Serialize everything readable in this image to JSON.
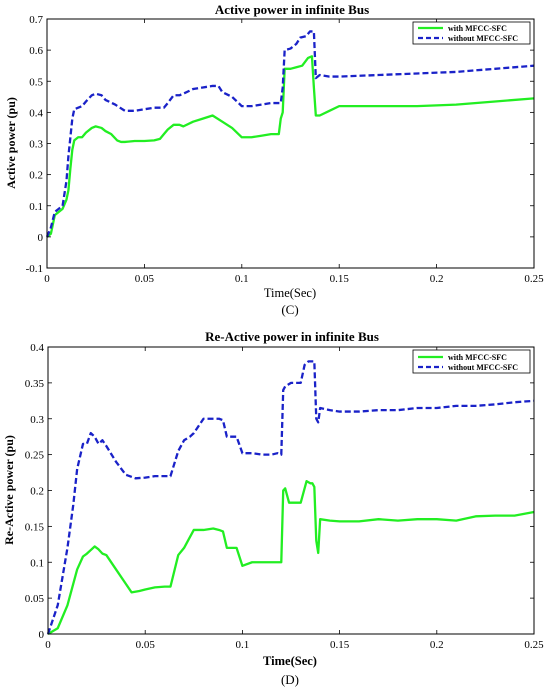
{
  "chart_data": [
    {
      "type": "line",
      "title": "Active power in infinite Bus",
      "xlabel": "Time(Sec)",
      "ylabel": "Active power (pu)",
      "caption": "(C)",
      "xlim": [
        0,
        0.25
      ],
      "ylim": [
        -0.1,
        0.7
      ],
      "xticks": [
        0,
        0.05,
        0.1,
        0.15,
        0.2,
        0.25
      ],
      "xtick_labels": [
        "0",
        "0.05",
        "0.1",
        "0.15",
        "0.2",
        "0.25"
      ],
      "yticks": [
        -0.1,
        0,
        0.1,
        0.2,
        0.3,
        0.4,
        0.5,
        0.6,
        0.7
      ],
      "ytick_labels": [
        "-0.1",
        "0",
        "0.1",
        "0.2",
        "0.3",
        "0.4",
        "0.5",
        "0.6",
        "0.7"
      ],
      "grid": false,
      "legend_position": "top-right",
      "series": [
        {
          "name": "with MFCC-SFC",
          "color": "#22ee22",
          "style": "solid",
          "x": [
            0,
            0.002,
            0.004,
            0.006,
            0.008,
            0.01,
            0.011,
            0.012,
            0.013,
            0.014,
            0.016,
            0.018,
            0.02,
            0.023,
            0.025,
            0.028,
            0.03,
            0.033,
            0.036,
            0.038,
            0.04,
            0.045,
            0.05,
            0.055,
            0.058,
            0.06,
            0.062,
            0.065,
            0.068,
            0.07,
            0.075,
            0.08,
            0.085,
            0.09,
            0.095,
            0.1,
            0.105,
            0.11,
            0.115,
            0.119,
            0.12,
            0.121,
            0.122,
            0.125,
            0.128,
            0.131,
            0.134,
            0.136,
            0.137,
            0.138,
            0.14,
            0.145,
            0.15,
            0.17,
            0.19,
            0.21,
            0.23,
            0.25
          ],
          "y": [
            0,
            0.01,
            0.07,
            0.08,
            0.09,
            0.12,
            0.15,
            0.22,
            0.28,
            0.31,
            0.32,
            0.32,
            0.335,
            0.35,
            0.355,
            0.35,
            0.34,
            0.33,
            0.31,
            0.305,
            0.305,
            0.308,
            0.308,
            0.31,
            0.315,
            0.33,
            0.345,
            0.36,
            0.36,
            0.355,
            0.37,
            0.38,
            0.39,
            0.37,
            0.35,
            0.32,
            0.32,
            0.325,
            0.33,
            0.33,
            0.38,
            0.4,
            0.54,
            0.54,
            0.545,
            0.55,
            0.575,
            0.58,
            0.48,
            0.39,
            0.39,
            0.405,
            0.42,
            0.42,
            0.42,
            0.425,
            0.435,
            0.445
          ]
        },
        {
          "name": "without MFCC-SFC",
          "color": "#1a22c8",
          "style": "dashed",
          "x": [
            0,
            0.002,
            0.004,
            0.006,
            0.008,
            0.01,
            0.011,
            0.012,
            0.013,
            0.014,
            0.016,
            0.018,
            0.02,
            0.023,
            0.025,
            0.028,
            0.03,
            0.035,
            0.04,
            0.045,
            0.05,
            0.055,
            0.06,
            0.062,
            0.065,
            0.068,
            0.07,
            0.075,
            0.08,
            0.085,
            0.088,
            0.09,
            0.095,
            0.1,
            0.105,
            0.11,
            0.115,
            0.119,
            0.12,
            0.121,
            0.122,
            0.125,
            0.128,
            0.13,
            0.133,
            0.135,
            0.137,
            0.138,
            0.14,
            0.145,
            0.15,
            0.17,
            0.19,
            0.21,
            0.23,
            0.25
          ],
          "y": [
            0,
            0.03,
            0.08,
            0.09,
            0.1,
            0.18,
            0.26,
            0.32,
            0.38,
            0.41,
            0.415,
            0.42,
            0.435,
            0.455,
            0.46,
            0.455,
            0.44,
            0.425,
            0.405,
            0.405,
            0.41,
            0.415,
            0.415,
            0.43,
            0.455,
            0.455,
            0.46,
            0.475,
            0.48,
            0.485,
            0.485,
            0.465,
            0.45,
            0.42,
            0.42,
            0.425,
            0.43,
            0.43,
            0.43,
            0.48,
            0.6,
            0.605,
            0.62,
            0.64,
            0.645,
            0.66,
            0.66,
            0.51,
            0.52,
            0.515,
            0.515,
            0.52,
            0.525,
            0.53,
            0.54,
            0.55
          ]
        }
      ]
    },
    {
      "type": "line",
      "title": "Re-Active power in infinite Bus",
      "xlabel": "Time(Sec)",
      "ylabel": "Re-Active power (pu)",
      "caption": "(D)",
      "xlim": [
        0,
        0.25
      ],
      "ylim": [
        0,
        0.4
      ],
      "xticks": [
        0,
        0.05,
        0.1,
        0.15,
        0.2,
        0.25
      ],
      "xtick_labels": [
        "0",
        "0.05",
        "0.1",
        "0.15",
        "0.2",
        "0.25"
      ],
      "yticks": [
        0,
        0.05,
        0.1,
        0.15,
        0.2,
        0.25,
        0.3,
        0.35,
        0.4
      ],
      "ytick_labels": [
        "0",
        "0.05",
        "0.1",
        "0.15",
        "0.2",
        "0.25",
        "0.3",
        "0.35",
        "0.4"
      ],
      "grid": false,
      "legend_position": "top-right",
      "series": [
        {
          "name": "with MFCC-SFC",
          "color": "#22ee22",
          "style": "solid",
          "x": [
            0,
            0.005,
            0.01,
            0.015,
            0.018,
            0.02,
            0.022,
            0.024,
            0.026,
            0.028,
            0.03,
            0.035,
            0.04,
            0.043,
            0.047,
            0.05,
            0.055,
            0.06,
            0.063,
            0.067,
            0.07,
            0.072,
            0.075,
            0.08,
            0.085,
            0.088,
            0.09,
            0.092,
            0.095,
            0.097,
            0.1,
            0.105,
            0.11,
            0.115,
            0.118,
            0.12,
            0.121,
            0.122,
            0.124,
            0.126,
            0.128,
            0.13,
            0.133,
            0.135,
            0.136,
            0.137,
            0.138,
            0.139,
            0.14,
            0.145,
            0.15,
            0.16,
            0.17,
            0.18,
            0.19,
            0.2,
            0.21,
            0.22,
            0.23,
            0.24,
            0.25
          ],
          "y": [
            0,
            0.008,
            0.04,
            0.09,
            0.108,
            0.112,
            0.117,
            0.122,
            0.118,
            0.112,
            0.11,
            0.09,
            0.07,
            0.058,
            0.06,
            0.062,
            0.065,
            0.066,
            0.066,
            0.11,
            0.12,
            0.13,
            0.145,
            0.145,
            0.147,
            0.145,
            0.143,
            0.12,
            0.12,
            0.12,
            0.095,
            0.1,
            0.1,
            0.1,
            0.1,
            0.1,
            0.2,
            0.203,
            0.183,
            0.183,
            0.183,
            0.183,
            0.213,
            0.21,
            0.21,
            0.205,
            0.13,
            0.113,
            0.16,
            0.158,
            0.157,
            0.157,
            0.16,
            0.158,
            0.16,
            0.16,
            0.158,
            0.164,
            0.165,
            0.165,
            0.17
          ]
        },
        {
          "name": "without MFCC-SFC",
          "color": "#1a22c8",
          "style": "dashed",
          "x": [
            0,
            0.005,
            0.01,
            0.013,
            0.015,
            0.018,
            0.02,
            0.022,
            0.024,
            0.026,
            0.028,
            0.03,
            0.035,
            0.04,
            0.045,
            0.05,
            0.055,
            0.06,
            0.063,
            0.067,
            0.07,
            0.073,
            0.075,
            0.08,
            0.085,
            0.088,
            0.09,
            0.092,
            0.095,
            0.097,
            0.1,
            0.105,
            0.11,
            0.115,
            0.118,
            0.12,
            0.121,
            0.122,
            0.125,
            0.128,
            0.13,
            0.132,
            0.134,
            0.136,
            0.137,
            0.138,
            0.139,
            0.14,
            0.145,
            0.15,
            0.16,
            0.17,
            0.18,
            0.19,
            0.2,
            0.21,
            0.22,
            0.23,
            0.24,
            0.25
          ],
          "y": [
            0,
            0.04,
            0.12,
            0.18,
            0.23,
            0.265,
            0.265,
            0.28,
            0.275,
            0.265,
            0.27,
            0.262,
            0.24,
            0.222,
            0.217,
            0.218,
            0.22,
            0.22,
            0.22,
            0.255,
            0.27,
            0.275,
            0.28,
            0.3,
            0.3,
            0.3,
            0.298,
            0.275,
            0.275,
            0.275,
            0.252,
            0.252,
            0.25,
            0.25,
            0.252,
            0.25,
            0.34,
            0.345,
            0.35,
            0.35,
            0.35,
            0.375,
            0.38,
            0.38,
            0.38,
            0.3,
            0.295,
            0.315,
            0.312,
            0.31,
            0.31,
            0.312,
            0.312,
            0.315,
            0.315,
            0.318,
            0.318,
            0.32,
            0.323,
            0.325
          ]
        }
      ]
    }
  ]
}
